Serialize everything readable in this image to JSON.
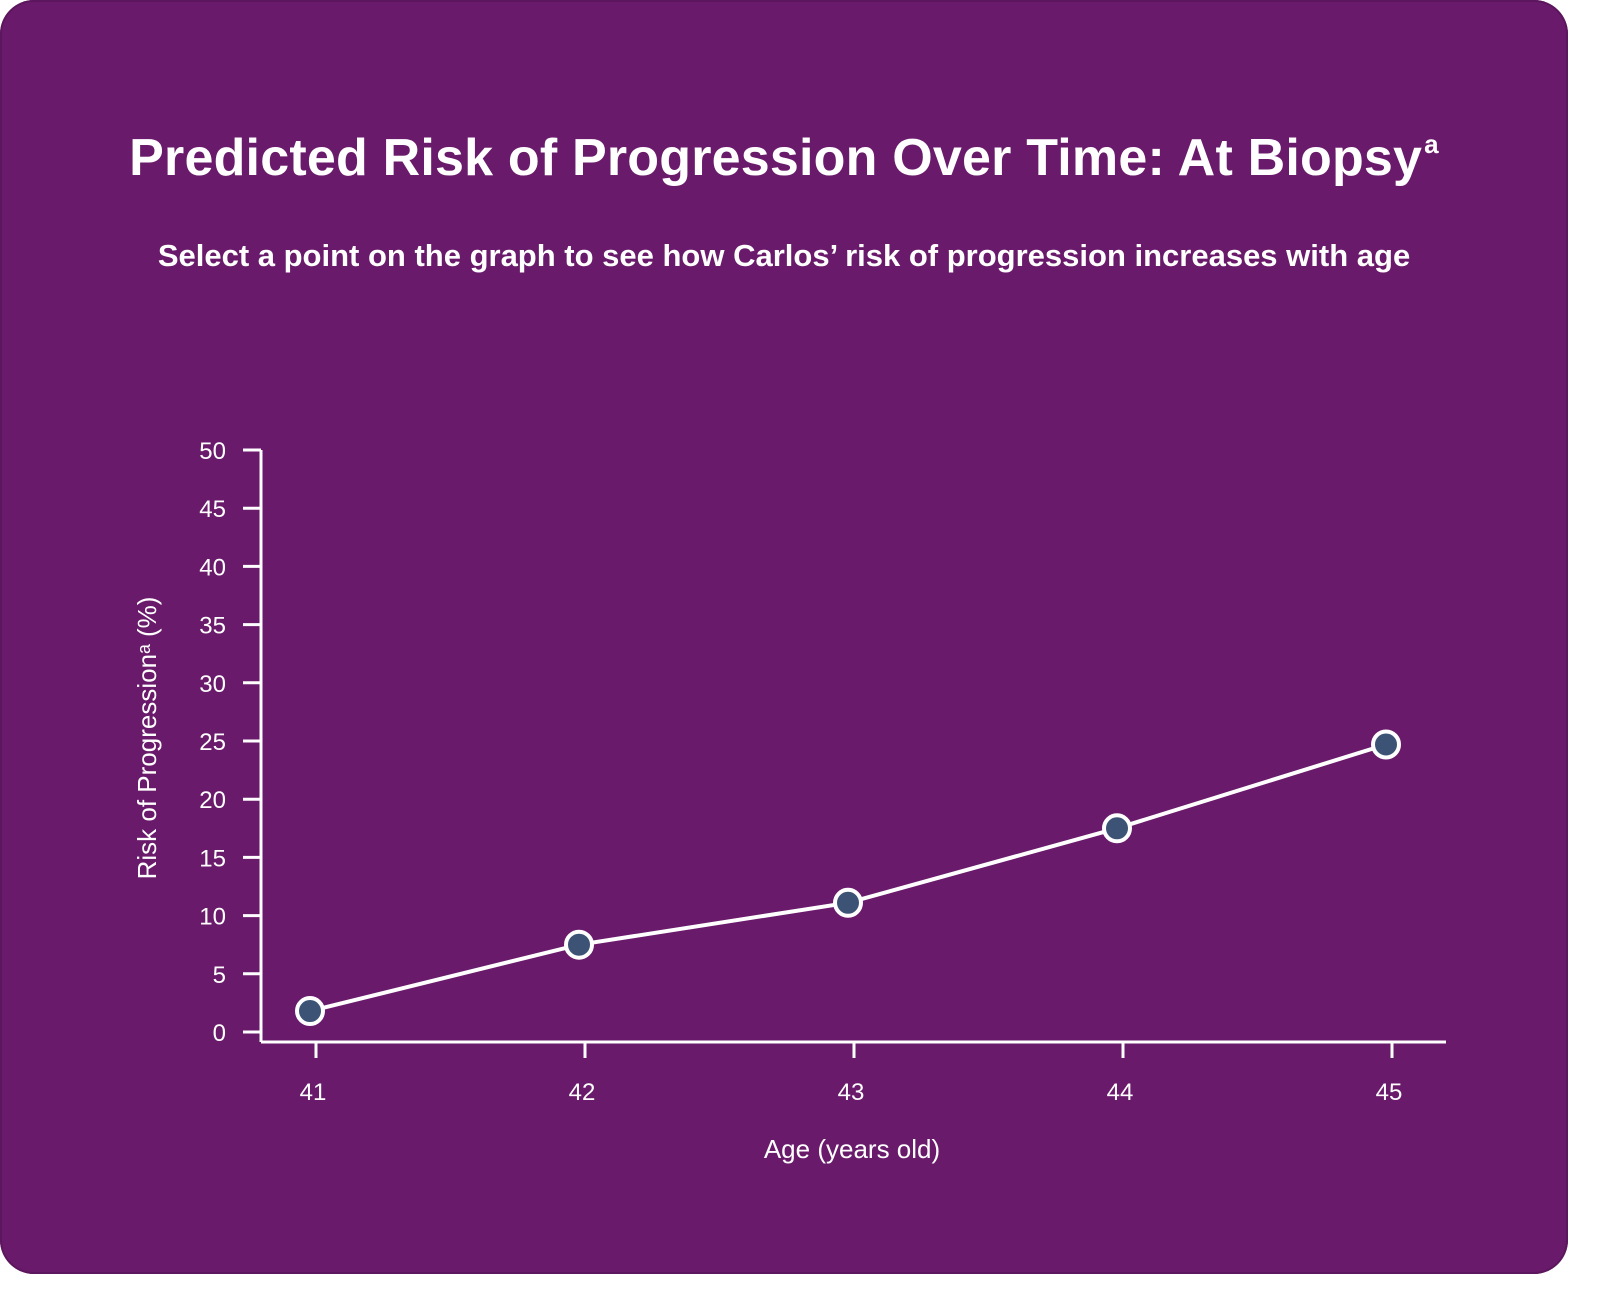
{
  "header": {
    "title": "Predicted Risk of Progression Over Time: At Biopsy",
    "title_superscript": "a",
    "subtitle": "Select a point on the graph to see how Carlos’ risk of progression increases with age"
  },
  "colors": {
    "background": "#6a1a6b",
    "line": "#ffffff",
    "marker_fill": "#3d5376",
    "marker_stroke": "#ffffff"
  },
  "chart_data": {
    "type": "line",
    "x": [
      41,
      42,
      43,
      44,
      45
    ],
    "series": [
      {
        "values": [
          1.8,
          7.5,
          11.1,
          17.5,
          24.7
        ]
      }
    ],
    "xlabel": "Age (years old)",
    "ylabel": "Risk of Progressionᵃ (%)",
    "ylim": [
      0,
      50
    ],
    "yticks": [
      0,
      5,
      10,
      15,
      20,
      25,
      30,
      35,
      40,
      45,
      50
    ],
    "xticks": [
      41,
      42,
      43,
      44,
      45
    ],
    "grid": false,
    "legend": "none"
  }
}
